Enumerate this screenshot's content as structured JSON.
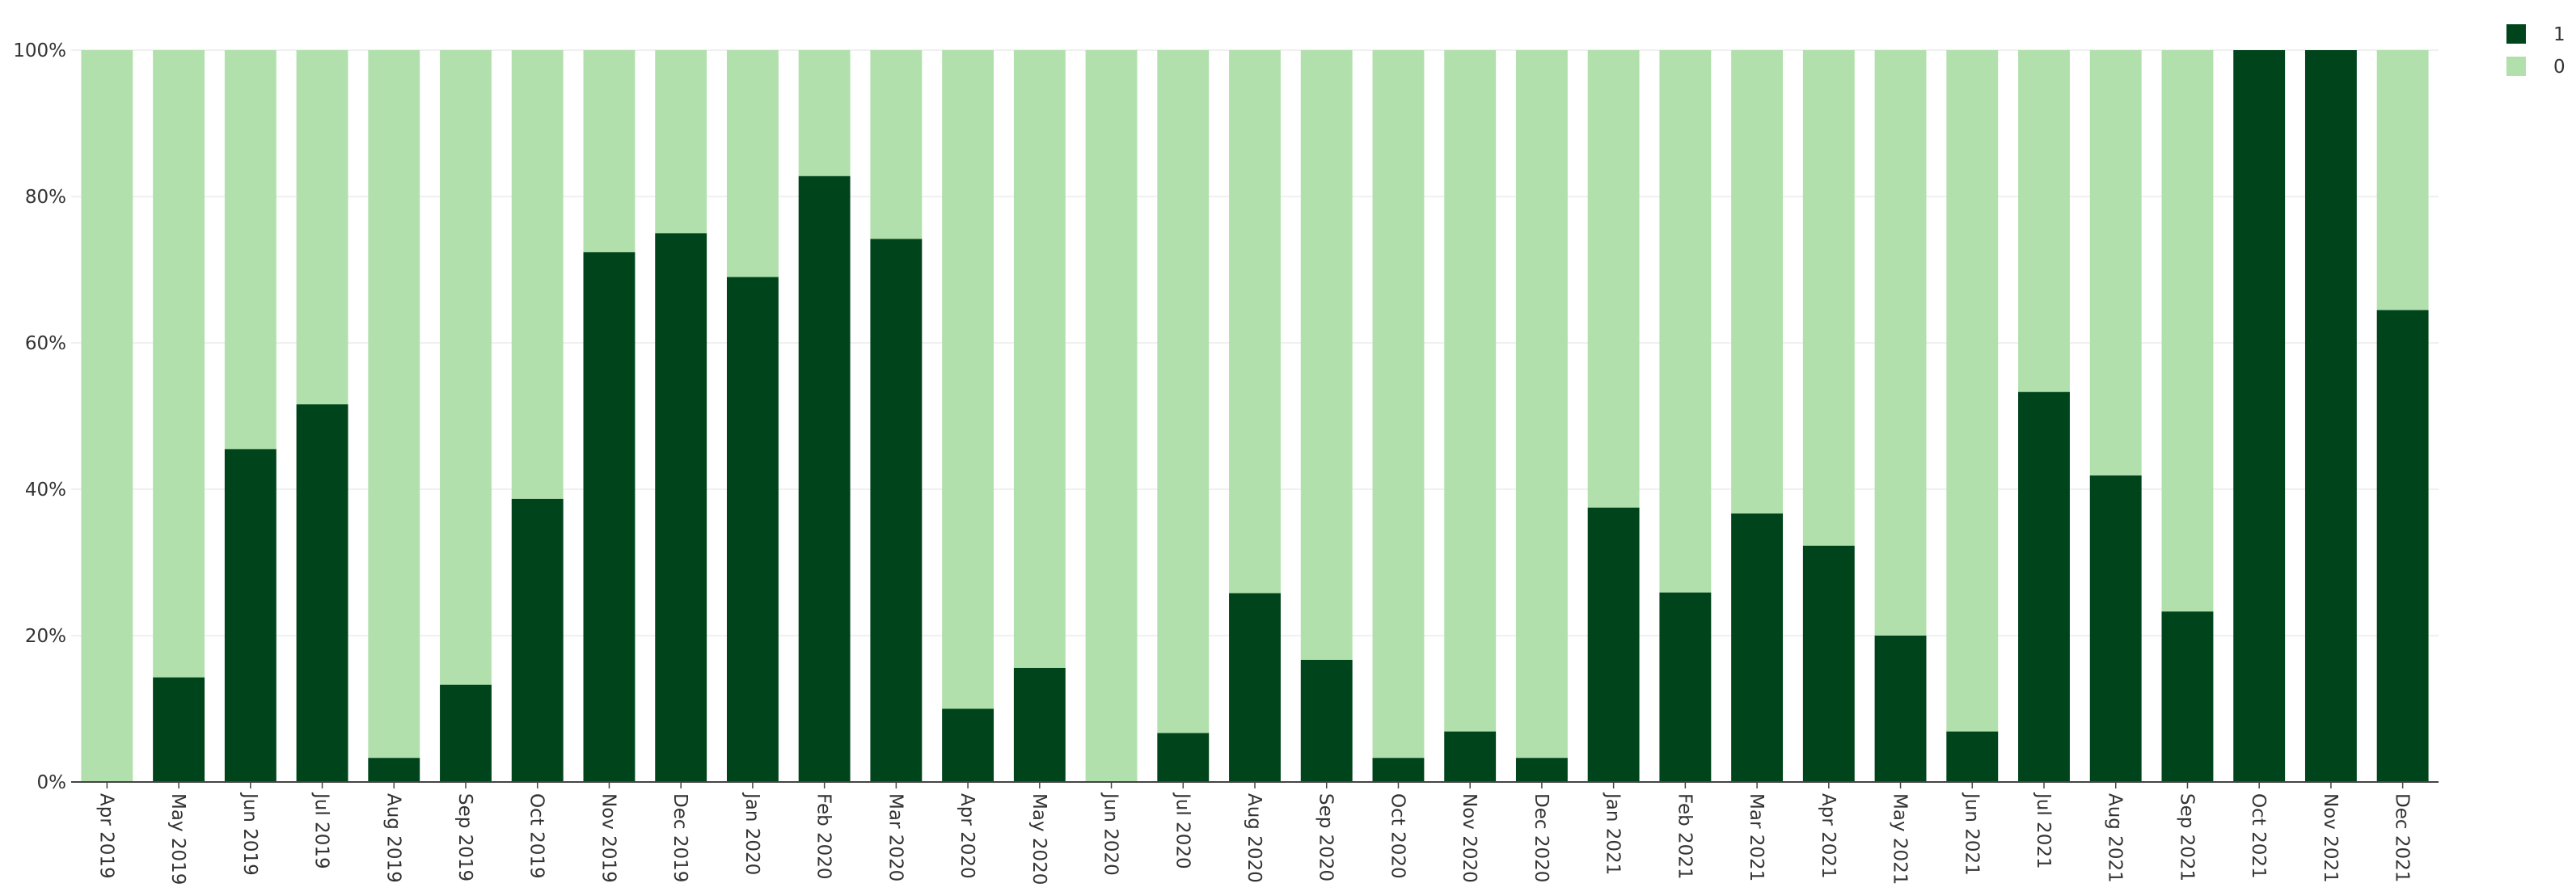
{
  "chart_data": {
    "type": "bar",
    "stacked": true,
    "normalized": true,
    "categories": [
      "Apr 2019",
      "May 2019",
      "Jun 2019",
      "Jul 2019",
      "Aug 2019",
      "Sep 2019",
      "Oct 2019",
      "Nov 2019",
      "Dec 2019",
      "Jan 2020",
      "Feb 2020",
      "Mar 2020",
      "Apr 2020",
      "May 2020",
      "Jun 2020",
      "Jul 2020",
      "Aug 2020",
      "Sep 2020",
      "Oct 2020",
      "Nov 2020",
      "Dec 2020",
      "Jan 2021",
      "Feb 2021",
      "Mar 2021",
      "Apr 2021",
      "May 2021",
      "Jun 2021",
      "Jul 2021",
      "Aug 2021",
      "Sep 2021",
      "Oct 2021",
      "Nov 2021",
      "Dec 2021"
    ],
    "series": [
      {
        "name": "1",
        "color": "#00441b",
        "values": [
          0,
          14.3,
          45.5,
          51.6,
          3.3,
          13.3,
          38.7,
          72.4,
          75.0,
          69.0,
          82.8,
          74.2,
          10.0,
          15.6,
          0,
          6.7,
          25.8,
          16.7,
          3.3,
          6.9,
          3.3,
          37.5,
          25.9,
          36.7,
          32.3,
          20.0,
          6.9,
          53.3,
          41.9,
          23.3,
          100,
          100,
          64.5
        ]
      },
      {
        "name": "0",
        "color": "#b2e0ad",
        "values": [
          100,
          85.7,
          54.5,
          48.4,
          96.7,
          86.7,
          61.3,
          27.6,
          25.0,
          31.0,
          17.2,
          25.8,
          90.0,
          84.4,
          100,
          93.3,
          74.2,
          83.3,
          96.7,
          93.1,
          96.7,
          62.5,
          74.1,
          63.3,
          67.7,
          80.0,
          93.1,
          46.7,
          58.1,
          76.7,
          0,
          0,
          35.5
        ]
      }
    ],
    "yticks": [
      "0%",
      "20%",
      "40%",
      "60%",
      "80%",
      "100%"
    ],
    "ylim": [
      0,
      100
    ],
    "grid": true,
    "legend": {
      "position": "top-right",
      "entries": [
        "1",
        "0"
      ]
    }
  }
}
